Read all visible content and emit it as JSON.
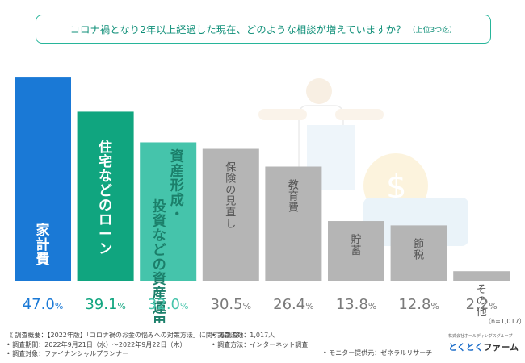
{
  "title": {
    "main": "コロナ禍となり2年以上経過した現在、どのような相談が増えていますか？",
    "sub": "（上位3つ迄）"
  },
  "chart_data": {
    "type": "bar",
    "categories": [
      "家計費",
      "住宅などのローン",
      "資産形成・投資などの資産運用",
      "保険の見直し",
      "教育費",
      "貯蓄",
      "節税",
      "その他"
    ],
    "values": [
      47.0,
      39.1,
      32.0,
      30.5,
      26.4,
      13.8,
      12.8,
      2.2
    ],
    "value_labels": [
      {
        "num": "47.0",
        "pct": "%"
      },
      {
        "num": "39.1",
        "pct": "%"
      },
      {
        "num": "32.0",
        "pct": "%"
      },
      {
        "num": "30.5",
        "pct": "%"
      },
      {
        "num": "26.4",
        "pct": "%"
      },
      {
        "num": "13.8",
        "pct": "%"
      },
      {
        "num": "12.8",
        "pct": "%"
      },
      {
        "num": "2.2",
        "pct": "%"
      }
    ],
    "bar_colors": [
      "#1a79d6",
      "#10a57f",
      "#45c4ab",
      "#b5b5b5",
      "#b5b5b5",
      "#b5b5b5",
      "#b5b5b5",
      "#b5b5b5"
    ],
    "value_colors": [
      "#1a79d6",
      "#10a57f",
      "#45c4ab",
      "#7a7a7a",
      "#7a7a7a",
      "#7a7a7a",
      "#7a7a7a",
      "#7a7a7a"
    ],
    "ylim": [
      0,
      50
    ]
  },
  "n_note": "（n=1,017）",
  "footer": {
    "lines_left": [
      "《 調査概要：【2022年版】「コロナ禍のお金の悩みへの対策方法」に関する調査 》",
      "• 調査期間：2022年9月21日（水）〜2022年9月22日（木）",
      "• 調査対象：ファイナンシャルプランナー"
    ],
    "lines_mid": [
      "",
      "• 調査人数：1,017人",
      "• 調査方法：インターネット調査"
    ],
    "right": "• モニター提供元：ゼネラルリサーチ"
  },
  "logo": {
    "small": "株式会社ホールディングスグループ",
    "main": "とくとく",
    "suffix": "ファーム"
  },
  "colors": {
    "accent": "#27b59a",
    "primary_blue": "#1a79d6",
    "gray_bar": "#b5b5b5"
  }
}
